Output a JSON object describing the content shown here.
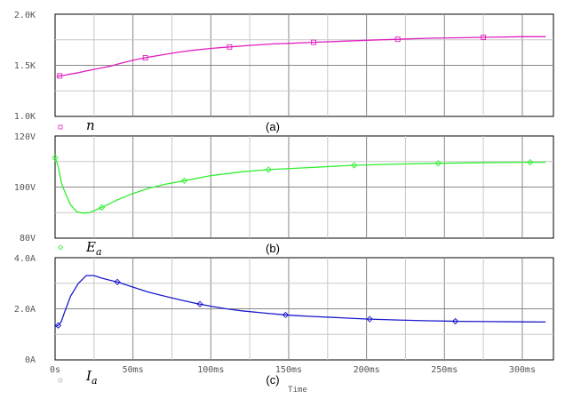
{
  "chart_data": [
    {
      "type": "line",
      "caption": "(a)",
      "series": [
        {
          "name": "n",
          "color": "#e020c0",
          "marker": "square",
          "x": [
            1,
            2,
            5,
            10,
            15,
            20,
            25,
            30,
            35,
            40,
            45,
            50,
            55,
            60,
            70,
            80,
            90,
            100,
            112,
            125,
            140,
            150,
            166,
            180,
            200,
            220,
            240,
            260,
            280,
            300,
            315
          ],
          "y": [
            1390,
            1395,
            1400,
            1415,
            1428,
            1445,
            1460,
            1475,
            1490,
            1510,
            1530,
            1550,
            1565,
            1580,
            1605,
            1630,
            1650,
            1665,
            1680,
            1695,
            1710,
            1715,
            1725,
            1733,
            1745,
            1755,
            1765,
            1770,
            1775,
            1780,
            1780
          ],
          "markers_x": [
            3,
            58,
            112,
            166,
            220,
            275
          ]
        }
      ],
      "yticks": [
        "1.0K",
        "1.5K",
        "2.0K"
      ],
      "ylim": [
        1000,
        2000
      ],
      "xlim": [
        0,
        320
      ],
      "grid": true
    },
    {
      "type": "line",
      "caption": "(b)",
      "series": [
        {
          "name": "Ea",
          "color": "#30f030",
          "marker": "diamond",
          "x": [
            0,
            1,
            2,
            3,
            4,
            5,
            7,
            10,
            14,
            18,
            22,
            26,
            30,
            35,
            40,
            50,
            60,
            70,
            83,
            100,
            120,
            137,
            160,
            190,
            220,
            245,
            270,
            300,
            315
          ],
          "y": [
            111.5,
            110,
            108,
            105,
            102,
            100,
            97,
            93,
            90.3,
            89.8,
            90,
            91,
            92,
            93.5,
            95,
            97.5,
            99.5,
            101,
            102.5,
            104.5,
            106,
            106.8,
            107.5,
            108.5,
            109,
            109.3,
            109.5,
            109.7,
            109.7
          ],
          "markers_x": [
            0,
            30,
            83,
            137,
            192,
            246,
            305
          ]
        }
      ],
      "yticks": [
        "80V",
        "100V",
        "120V"
      ],
      "ylim": [
        80,
        120
      ],
      "xlim": [
        0,
        320
      ],
      "grid": true
    },
    {
      "type": "line",
      "caption": "(c)",
      "series": [
        {
          "name": "Ia",
          "color": "#1a1acc",
          "marker": "diamond",
          "x": [
            0,
            2,
            4,
            6,
            10,
            15,
            20,
            25,
            30,
            35,
            40,
            50,
            60,
            70,
            80,
            90,
            100,
            110,
            120,
            135,
            150,
            165,
            180,
            200,
            220,
            240,
            260,
            280,
            300,
            315
          ],
          "y": [
            1.3,
            1.35,
            1.5,
            1.85,
            2.5,
            3.0,
            3.3,
            3.3,
            3.2,
            3.12,
            3.05,
            2.85,
            2.65,
            2.5,
            2.35,
            2.22,
            2.1,
            2.0,
            1.92,
            1.83,
            1.75,
            1.7,
            1.66,
            1.6,
            1.56,
            1.53,
            1.51,
            1.5,
            1.49,
            1.48
          ],
          "markers_x": [
            2,
            40,
            93,
            148,
            202,
            257
          ]
        }
      ],
      "yticks": [
        "0A",
        "2.0A",
        "4.0A"
      ],
      "ylim": [
        0,
        4
      ],
      "xlim": [
        0,
        320
      ],
      "grid": true,
      "xticks": [
        "0s",
        "50ms",
        "100ms",
        "150ms",
        "200ms",
        "250ms",
        "300ms"
      ],
      "xlabel": "Time"
    }
  ],
  "legend": {
    "n_symbol": "n",
    "ea_symbol": "E",
    "ea_sub": "a",
    "ia_symbol": "I",
    "ia_sub": "a"
  }
}
